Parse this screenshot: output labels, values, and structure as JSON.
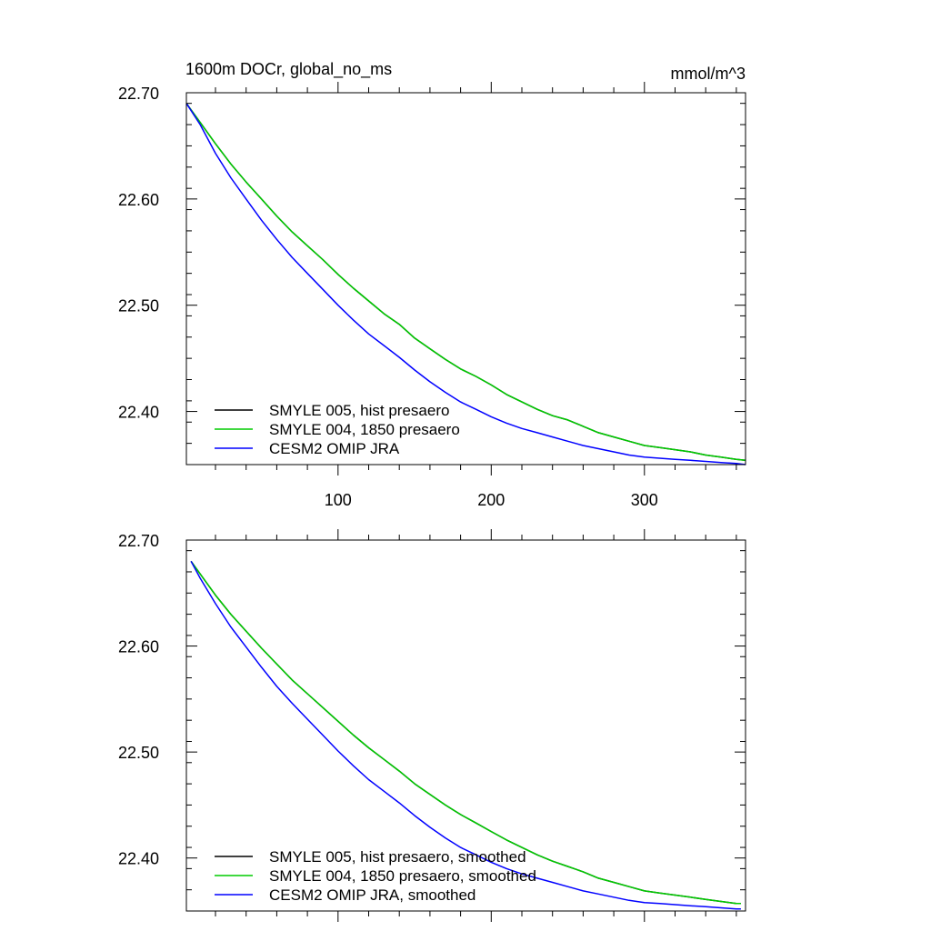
{
  "chart_data": [
    {
      "type": "line",
      "title_left": "1600m DOCr, global_no_ms",
      "title_right": "mmol/m^3",
      "xlabel": "",
      "ylabel": "",
      "xlim": [
        1,
        366
      ],
      "ylim": [
        22.35,
        22.7
      ],
      "x_ticks": [
        100,
        200,
        300
      ],
      "x_tick_labels": [
        "100",
        "200",
        "300"
      ],
      "y_ticks": [
        22.4,
        22.5,
        22.6,
        22.7
      ],
      "y_tick_labels": [
        "22.40",
        "22.50",
        "22.60",
        "22.70"
      ],
      "legend_position": "bottom-left",
      "series": [
        {
          "name": "SMYLE 005, hist presaero",
          "color": "#000000",
          "x": [
            1,
            10,
            20,
            30,
            40,
            50,
            60,
            70,
            80,
            90,
            100,
            110,
            120,
            130,
            140,
            150,
            160,
            170,
            180,
            190,
            200,
            210,
            220,
            230,
            240,
            250,
            260,
            270,
            280,
            290,
            300,
            310,
            320,
            330,
            340,
            350,
            360,
            366
          ],
          "y": [
            22.69,
            22.672,
            22.652,
            22.633,
            22.616,
            22.6,
            22.584,
            22.569,
            22.556,
            22.543,
            22.529,
            22.516,
            22.504,
            22.492,
            22.482,
            22.469,
            22.459,
            22.449,
            22.44,
            22.433,
            22.425,
            22.416,
            22.409,
            22.402,
            22.396,
            22.392,
            22.386,
            22.38,
            22.376,
            22.372,
            22.368,
            22.366,
            22.364,
            22.362,
            22.359,
            22.357,
            22.355,
            22.354
          ]
        },
        {
          "name": "SMYLE 004, 1850 presaero",
          "color": "#00cc00",
          "x": [
            1,
            10,
            20,
            30,
            40,
            50,
            60,
            70,
            80,
            90,
            100,
            110,
            120,
            130,
            140,
            150,
            160,
            170,
            180,
            190,
            200,
            210,
            220,
            230,
            240,
            250,
            260,
            270,
            280,
            290,
            300,
            310,
            320,
            330,
            340,
            350,
            360,
            366
          ],
          "y": [
            22.69,
            22.672,
            22.652,
            22.633,
            22.616,
            22.6,
            22.584,
            22.569,
            22.556,
            22.543,
            22.529,
            22.516,
            22.504,
            22.492,
            22.482,
            22.469,
            22.459,
            22.449,
            22.44,
            22.433,
            22.425,
            22.416,
            22.409,
            22.402,
            22.396,
            22.392,
            22.386,
            22.38,
            22.376,
            22.372,
            22.368,
            22.366,
            22.364,
            22.362,
            22.359,
            22.357,
            22.355,
            22.354
          ]
        },
        {
          "name": "CESM2 OMIP JRA",
          "color": "#0000ff",
          "x": [
            1,
            10,
            20,
            30,
            40,
            50,
            60,
            70,
            80,
            90,
            100,
            110,
            120,
            130,
            140,
            150,
            160,
            170,
            180,
            190,
            200,
            210,
            220,
            230,
            240,
            250,
            260,
            270,
            280,
            290,
            300,
            310,
            320,
            330,
            340,
            350,
            360,
            366
          ],
          "y": [
            22.69,
            22.67,
            22.643,
            22.62,
            22.6,
            22.58,
            22.562,
            22.545,
            22.53,
            22.515,
            22.5,
            22.486,
            22.473,
            22.462,
            22.451,
            22.439,
            22.428,
            22.418,
            22.409,
            22.402,
            22.395,
            22.389,
            22.384,
            22.38,
            22.376,
            22.372,
            22.368,
            22.365,
            22.362,
            22.359,
            22.357,
            22.356,
            22.355,
            22.354,
            22.353,
            22.352,
            22.351,
            22.35
          ]
        }
      ]
    },
    {
      "type": "line",
      "title_left": "",
      "title_right": "",
      "xlabel": "",
      "ylabel": "",
      "xlim": [
        1,
        366
      ],
      "ylim": [
        22.35,
        22.7
      ],
      "x_ticks": [
        100,
        200,
        300
      ],
      "x_tick_labels": [],
      "y_ticks": [
        22.4,
        22.5,
        22.6,
        22.7
      ],
      "y_tick_labels": [
        "22.40",
        "22.50",
        "22.60",
        "22.70"
      ],
      "legend_position": "bottom-left",
      "series": [
        {
          "name": "SMYLE 005, hist presaero, smoothed",
          "color": "#000000",
          "x": [
            4,
            10,
            20,
            30,
            40,
            50,
            60,
            70,
            80,
            90,
            100,
            110,
            120,
            130,
            140,
            150,
            160,
            170,
            180,
            190,
            200,
            210,
            220,
            230,
            240,
            250,
            260,
            270,
            280,
            290,
            300,
            310,
            320,
            330,
            340,
            350,
            360,
            363
          ],
          "y": [
            22.68,
            22.668,
            22.648,
            22.63,
            22.614,
            22.598,
            22.583,
            22.568,
            22.555,
            22.542,
            22.529,
            22.516,
            22.504,
            22.493,
            22.482,
            22.47,
            22.46,
            22.45,
            22.441,
            22.433,
            22.425,
            22.417,
            22.41,
            22.403,
            22.397,
            22.392,
            22.387,
            22.381,
            22.377,
            22.373,
            22.369,
            22.367,
            22.365,
            22.363,
            22.361,
            22.359,
            22.357,
            22.357
          ]
        },
        {
          "name": "SMYLE 004, 1850 presaero, smoothed",
          "color": "#00cc00",
          "x": [
            4,
            10,
            20,
            30,
            40,
            50,
            60,
            70,
            80,
            90,
            100,
            110,
            120,
            130,
            140,
            150,
            160,
            170,
            180,
            190,
            200,
            210,
            220,
            230,
            240,
            250,
            260,
            270,
            280,
            290,
            300,
            310,
            320,
            330,
            340,
            350,
            360,
            363
          ],
          "y": [
            22.68,
            22.668,
            22.648,
            22.63,
            22.614,
            22.598,
            22.583,
            22.568,
            22.555,
            22.542,
            22.529,
            22.516,
            22.504,
            22.493,
            22.482,
            22.47,
            22.46,
            22.45,
            22.441,
            22.433,
            22.425,
            22.417,
            22.41,
            22.403,
            22.397,
            22.392,
            22.387,
            22.381,
            22.377,
            22.373,
            22.369,
            22.367,
            22.365,
            22.363,
            22.361,
            22.359,
            22.357,
            22.357
          ]
        },
        {
          "name": "CESM2 OMIP JRA, smoothed",
          "color": "#0000ff",
          "x": [
            4,
            10,
            20,
            30,
            40,
            50,
            60,
            70,
            80,
            90,
            100,
            110,
            120,
            130,
            140,
            150,
            160,
            170,
            180,
            190,
            200,
            210,
            220,
            230,
            240,
            250,
            260,
            270,
            280,
            290,
            300,
            310,
            320,
            330,
            340,
            350,
            360,
            363
          ],
          "y": [
            22.68,
            22.664,
            22.64,
            22.618,
            22.599,
            22.58,
            22.562,
            22.546,
            22.531,
            22.516,
            22.501,
            22.487,
            22.474,
            22.463,
            22.452,
            22.44,
            22.429,
            22.419,
            22.41,
            22.403,
            22.396,
            22.39,
            22.385,
            22.381,
            22.377,
            22.373,
            22.369,
            22.366,
            22.363,
            22.36,
            22.358,
            22.357,
            22.356,
            22.355,
            22.354,
            22.353,
            22.352,
            22.352
          ]
        }
      ]
    }
  ]
}
